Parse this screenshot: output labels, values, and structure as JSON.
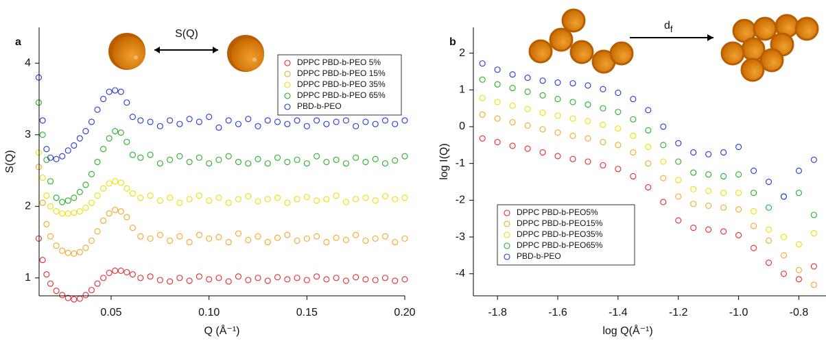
{
  "chart_data": [
    {
      "type": "scatter",
      "panel": "a",
      "ylabel": "S(Q)",
      "xlabel": "Q (Å⁻¹)",
      "annotation": "S(Q)",
      "xlim": [
        0.0132,
        0.2
      ],
      "ylim": [
        0.75,
        4.5
      ],
      "xticks": [
        0.05,
        {
          "value": 0.1,
          "label": "0.10"
        },
        0.15,
        {
          "value": 0.2,
          "label": "0.20"
        }
      ],
      "yticks": [
        1,
        2,
        3,
        4
      ],
      "legend": "top-right",
      "x": [
        0.013,
        0.015,
        0.017,
        0.019,
        0.022,
        0.025,
        0.028,
        0.031,
        0.034,
        0.037,
        0.04,
        0.043,
        0.046,
        0.049,
        0.052,
        0.055,
        0.058,
        0.061,
        0.065,
        0.07,
        0.075,
        0.08,
        0.085,
        0.09,
        0.095,
        0.1,
        0.105,
        0.11,
        0.115,
        0.12,
        0.125,
        0.13,
        0.135,
        0.14,
        0.145,
        0.15,
        0.155,
        0.16,
        0.165,
        0.17,
        0.175,
        0.18,
        0.185,
        0.19,
        0.195,
        0.2
      ],
      "series": [
        {
          "name": "DPPC PBD-b-PEO 5%",
          "color": "#e8272a",
          "values": [
            1.55,
            1.25,
            1.05,
            0.92,
            0.82,
            0.76,
            0.72,
            0.7,
            0.71,
            0.76,
            0.83,
            0.92,
            1.0,
            1.07,
            1.1,
            1.1,
            1.08,
            1.05,
            1.0,
            1.02,
            0.97,
            0.95,
            1.0,
            0.96,
            1.02,
            0.98,
            1.0,
            0.95,
            1.02,
            0.97,
            1.0,
            0.96,
            1.01,
            0.98,
            1.0,
            0.97,
            1.02,
            0.98,
            1.0,
            0.96,
            1.01,
            0.98,
            0.97,
            1.0,
            0.96,
            0.98
          ]
        },
        {
          "name": "DPPC PBD-b-PEO 15%",
          "color": "#f5a623",
          "values": [
            2.55,
            2.05,
            1.75,
            1.58,
            1.45,
            1.38,
            1.35,
            1.34,
            1.36,
            1.42,
            1.52,
            1.65,
            1.8,
            1.9,
            1.95,
            1.93,
            1.85,
            1.7,
            1.58,
            1.55,
            1.6,
            1.52,
            1.58,
            1.5,
            1.6,
            1.55,
            1.57,
            1.5,
            1.62,
            1.53,
            1.58,
            1.5,
            1.56,
            1.6,
            1.52,
            1.55,
            1.58,
            1.5,
            1.56,
            1.53,
            1.6,
            1.52,
            1.55,
            1.58,
            1.5,
            1.55
          ]
        },
        {
          "name": "DPPC PBD-b-PEO 35%",
          "color": "#ece000",
          "values": [
            2.75,
            2.4,
            2.15,
            2.0,
            1.93,
            1.9,
            1.9,
            1.91,
            1.93,
            1.98,
            2.05,
            2.15,
            2.25,
            2.32,
            2.35,
            2.33,
            2.25,
            2.18,
            2.12,
            2.15,
            2.08,
            2.12,
            2.05,
            2.1,
            2.15,
            2.08,
            2.12,
            2.05,
            2.1,
            2.14,
            2.07,
            2.1,
            2.12,
            2.05,
            2.1,
            2.13,
            2.08,
            2.1,
            2.15,
            2.06,
            2.1,
            2.12,
            2.08,
            2.14,
            2.1,
            2.12
          ]
        },
        {
          "name": "DPPC PBD-b-PEO 65%",
          "color": "#22b022",
          "values": [
            3.45,
            3.0,
            2.65,
            2.35,
            2.12,
            2.06,
            2.08,
            2.12,
            2.2,
            2.3,
            2.45,
            2.62,
            2.8,
            2.95,
            3.05,
            3.03,
            2.9,
            2.72,
            2.68,
            2.72,
            2.6,
            2.65,
            2.7,
            2.62,
            2.68,
            2.6,
            2.65,
            2.7,
            2.62,
            2.6,
            2.66,
            2.6,
            2.68,
            2.62,
            2.65,
            2.6,
            2.7,
            2.62,
            2.65,
            2.6,
            2.68,
            2.62,
            2.66,
            2.6,
            2.64,
            2.7
          ]
        },
        {
          "name": "PBD-b-PEO",
          "color": "#2233dd",
          "values": [
            3.8,
            3.2,
            2.8,
            2.68,
            2.66,
            2.7,
            2.78,
            2.85,
            2.95,
            3.05,
            3.18,
            3.35,
            3.5,
            3.6,
            3.62,
            3.6,
            3.45,
            3.25,
            3.2,
            3.18,
            3.12,
            3.2,
            3.15,
            3.22,
            3.18,
            3.25,
            3.1,
            3.2,
            3.15,
            3.22,
            3.12,
            3.2,
            3.18,
            3.15,
            3.2,
            3.12,
            3.2,
            3.15,
            3.18,
            3.2,
            3.12,
            3.18,
            3.15,
            3.2,
            3.15,
            3.2
          ]
        }
      ]
    },
    {
      "type": "scatter",
      "panel": "b",
      "ylabel": "log I(Q)",
      "xlabel": "log Q(Å⁻¹)",
      "annotation": {
        "text": "d",
        "sub": "f"
      },
      "xlim": [
        -1.88,
        -0.71
      ],
      "ylim": [
        -4.6,
        2.7
      ],
      "xticks": [
        -1.8,
        -1.6,
        -1.4,
        -1.2,
        {
          "value": -1.0,
          "label": "-1.0"
        },
        -0.8
      ],
      "yticks": [
        2,
        1,
        0,
        -1,
        -2,
        -3,
        -4
      ],
      "legend": "bottom-left",
      "x": [
        -1.85,
        -1.8,
        -1.75,
        -1.7,
        -1.65,
        -1.6,
        -1.55,
        -1.5,
        -1.45,
        -1.4,
        -1.35,
        -1.3,
        -1.25,
        -1.2,
        -1.15,
        -1.1,
        -1.05,
        -1.0,
        -0.95,
        -0.9,
        -0.85,
        -0.8,
        -0.75
      ],
      "series": [
        {
          "name": "DPPC PBD-b-PEO5%",
          "color": "#e8272a",
          "values": [
            -0.32,
            -0.42,
            -0.52,
            -0.6,
            -0.7,
            -0.8,
            -0.88,
            -0.95,
            -1.05,
            -1.15,
            -1.35,
            -1.65,
            -2.05,
            -2.55,
            -2.75,
            -2.8,
            -2.85,
            -2.95,
            -3.3,
            -3.7,
            -4.0,
            -4.15,
            -3.8
          ]
        },
        {
          "name": "DPPC PBD-b-PEO15%",
          "color": "#f5a623",
          "values": [
            0.33,
            0.22,
            0.12,
            0.03,
            -0.07,
            -0.16,
            -0.25,
            -0.32,
            -0.42,
            -0.5,
            -0.7,
            -1.0,
            -1.4,
            -1.9,
            -2.1,
            -2.15,
            -2.2,
            -2.25,
            -2.7,
            -3.1,
            -3.5,
            -3.9,
            -4.3
          ]
        },
        {
          "name": "DPPC PBD-b-PEO35%",
          "color": "#ece000",
          "values": [
            0.78,
            0.67,
            0.57,
            0.48,
            0.38,
            0.3,
            0.22,
            0.15,
            0.05,
            -0.05,
            -0.25,
            -0.55,
            -0.95,
            -1.45,
            -1.7,
            -1.75,
            -1.8,
            -1.8,
            -2.3,
            -2.8,
            -3.0,
            -3.2,
            -2.9
          ]
        },
        {
          "name": "DPPC PBD-b-PEO65%",
          "color": "#22b022",
          "values": [
            1.28,
            1.15,
            1.05,
            0.95,
            0.85,
            0.75,
            0.67,
            0.6,
            0.5,
            0.4,
            0.2,
            -0.1,
            -0.5,
            -0.95,
            -1.25,
            -1.3,
            -1.35,
            -1.3,
            -1.8,
            -2.2,
            -1.9,
            -1.8,
            -2.4
          ]
        },
        {
          "name": "PBD-b-PEO",
          "color": "#2233dd",
          "values": [
            1.72,
            1.55,
            1.42,
            1.33,
            1.25,
            1.2,
            1.18,
            1.12,
            1.02,
            0.92,
            0.75,
            0.45,
            0.0,
            -0.45,
            -0.7,
            -0.75,
            -0.7,
            -0.55,
            -1.2,
            -1.5,
            -1.9,
            -1.2,
            -0.9
          ]
        }
      ]
    }
  ]
}
